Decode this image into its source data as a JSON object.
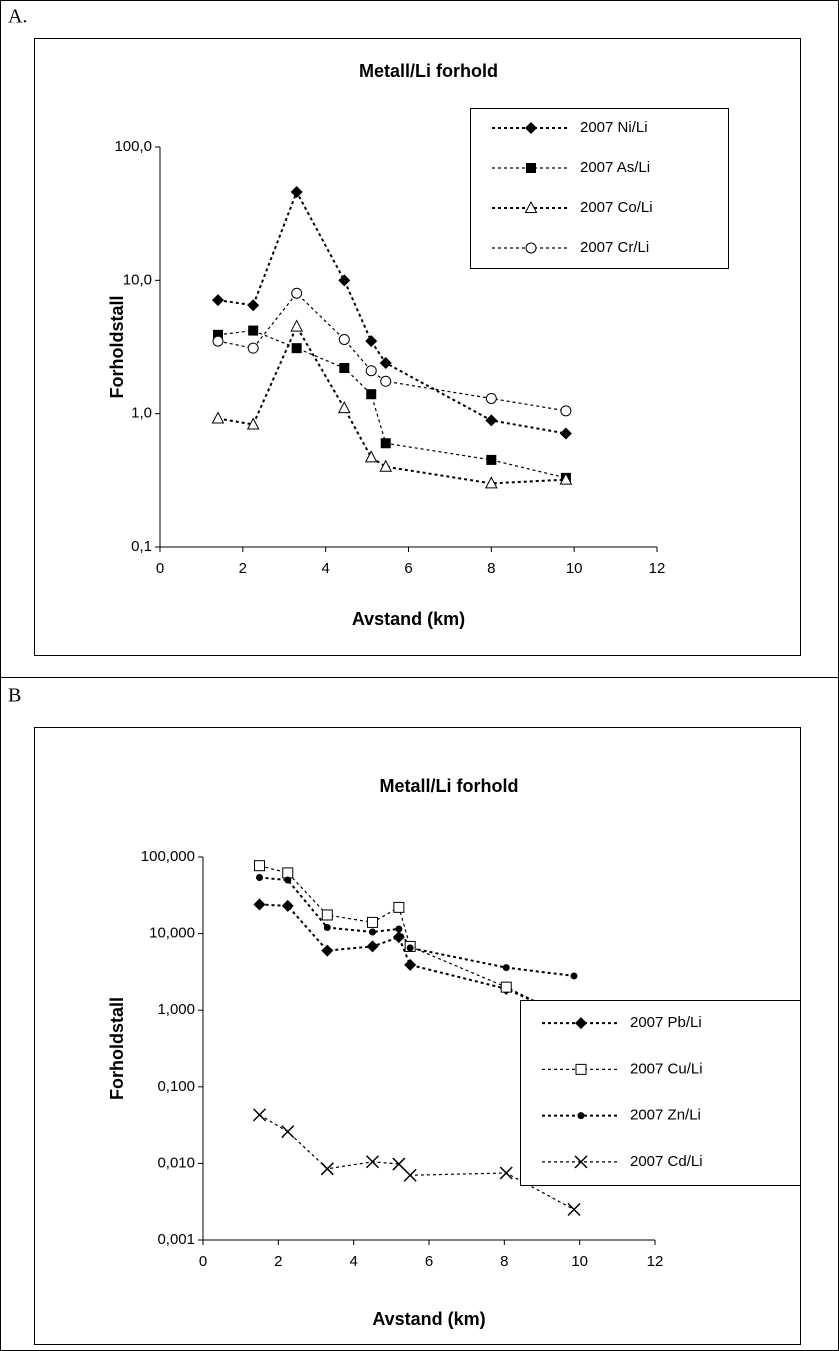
{
  "chart_data": [
    {
      "type": "line",
      "label": "A.",
      "title": "Metall/Li forhold",
      "xlabel": "Avstand (km)",
      "ylabel": "Forholdstall",
      "log_y": true,
      "legend": "upper right",
      "x": [
        1.4,
        2.25,
        3.3,
        4.45,
        5.1,
        5.45,
        8.0,
        9.8
      ],
      "xlim": [
        0,
        12
      ],
      "xticks": [
        0,
        2,
        4,
        6,
        8,
        10,
        12
      ],
      "ylim": [
        0.1,
        100
      ],
      "yticks": [
        {
          "value": 0.1,
          "label": "0,1"
        },
        {
          "value": 1,
          "label": "1,0"
        },
        {
          "value": 10,
          "label": "10,0"
        },
        {
          "value": 100,
          "label": "100,0"
        }
      ],
      "series": [
        {
          "name": "2007 Ni/Li",
          "color": "#000000",
          "marker": "diamond",
          "values": [
            7.1,
            6.5,
            46,
            10,
            3.5,
            2.4,
            0.89,
            0.71
          ]
        },
        {
          "name": "2007 As/Li",
          "color": "#000000",
          "marker": "square",
          "values": [
            3.9,
            4.2,
            3.1,
            2.2,
            1.4,
            0.6,
            0.45,
            0.33
          ]
        },
        {
          "name": "2007 Co/Li",
          "color": "#000000",
          "marker": "triangle-open",
          "values": [
            0.92,
            0.83,
            4.5,
            1.1,
            0.47,
            0.4,
            0.3,
            0.32
          ]
        },
        {
          "name": "2007 Cr/Li",
          "color": "#000000",
          "marker": "circle-open",
          "values": [
            3.5,
            3.1,
            8.0,
            3.6,
            2.1,
            1.75,
            1.3,
            1.05
          ]
        }
      ]
    },
    {
      "type": "line",
      "label": "B",
      "title": "Metall/Li forhold",
      "xlabel": "Avstand (km)",
      "ylabel": "Forholdstall",
      "log_y": true,
      "legend": "right",
      "x": [
        1.5,
        2.25,
        3.3,
        4.5,
        5.2,
        5.5,
        8.05,
        9.85
      ],
      "xlim": [
        0,
        12
      ],
      "xticks": [
        0,
        2,
        4,
        6,
        8,
        10,
        12
      ],
      "ylim": [
        0.001,
        100
      ],
      "yticks": [
        {
          "value": 0.001,
          "label": "0,001"
        },
        {
          "value": 0.01,
          "label": "0,010"
        },
        {
          "value": 0.1,
          "label": "0,100"
        },
        {
          "value": 1,
          "label": "1,000"
        },
        {
          "value": 10,
          "label": "10,000"
        },
        {
          "value": 100,
          "label": "100,000"
        }
      ],
      "series": [
        {
          "name": "2007 Pb/Li",
          "color": "#000000",
          "marker": "diamond",
          "values": [
            24,
            23,
            6,
            6.8,
            9,
            3.9,
            1.9,
            0.75
          ]
        },
        {
          "name": "2007 Cu/Li",
          "color": "#000000",
          "marker": "square-open",
          "values": [
            77,
            62,
            17.5,
            14,
            22,
            6.8,
            2.0,
            0.75
          ]
        },
        {
          "name": "2007 Zn/Li",
          "color": "#000000",
          "marker": "dot",
          "values": [
            54,
            50,
            12,
            10.5,
            11.5,
            6.5,
            3.6,
            2.8
          ]
        },
        {
          "name": "2007 Cd/Li",
          "color": "#000000",
          "marker": "x",
          "values": [
            0.043,
            0.026,
            0.0085,
            0.0105,
            0.0098,
            0.007,
            0.0075,
            0.0025
          ]
        }
      ]
    }
  ]
}
